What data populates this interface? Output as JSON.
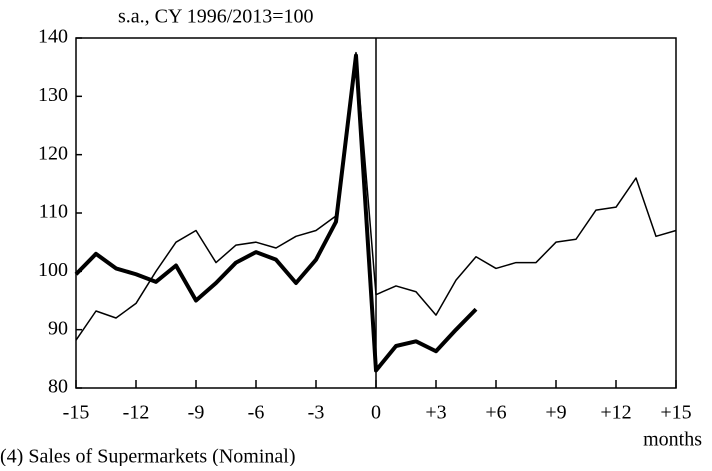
{
  "chart_data": {
    "type": "line",
    "subtitle": "s.a., CY 1996/2013=100",
    "x_label": "months",
    "caption": "(4) Sales of Supermarkets (Nominal)",
    "x": [
      -15,
      -14,
      -13,
      -12,
      -11,
      -10,
      -9,
      -8,
      -7,
      -6,
      -5,
      -4,
      -3,
      -2,
      -1,
      0,
      1,
      2,
      3,
      4,
      5,
      6,
      7,
      8,
      9,
      10,
      11,
      12,
      13,
      14,
      15
    ],
    "series": [
      {
        "color": "#000000",
        "width": 1.5,
        "values": [
          88.2,
          93.2,
          92,
          94.5,
          100,
          105,
          107,
          101.5,
          104.5,
          105,
          104,
          106,
          107,
          109.5,
          137.5,
          96,
          97.5,
          96.5,
          92.5,
          98.5,
          102.5,
          100.5,
          101.5,
          101.5,
          105,
          105.5,
          110.5,
          111,
          116,
          106,
          107
        ]
      },
      {
        "color": "#000000",
        "width": 4,
        "values": [
          99.5,
          103,
          100.5,
          99.5,
          98.2,
          101,
          95,
          98,
          101.5,
          103.3,
          102,
          98,
          102,
          108.5,
          137,
          83,
          87.2,
          88,
          86.3,
          90,
          93.5,
          null,
          null,
          null,
          null,
          null,
          null,
          null,
          null,
          null,
          null
        ]
      }
    ],
    "xlim": [
      -15,
      15
    ],
    "xticks": [
      -15,
      -12,
      -9,
      -6,
      -3,
      0,
      {
        "value": 3,
        "label": "+3"
      },
      {
        "value": 6,
        "label": "+6"
      },
      {
        "value": 9,
        "label": "+9"
      },
      {
        "value": 12,
        "label": "+12"
      },
      {
        "value": 15,
        "label": "+15"
      }
    ],
    "ylim": [
      80,
      140
    ],
    "yticks": [
      80,
      90,
      100,
      110,
      120,
      130,
      140
    ],
    "vline": 0,
    "grid": false
  }
}
